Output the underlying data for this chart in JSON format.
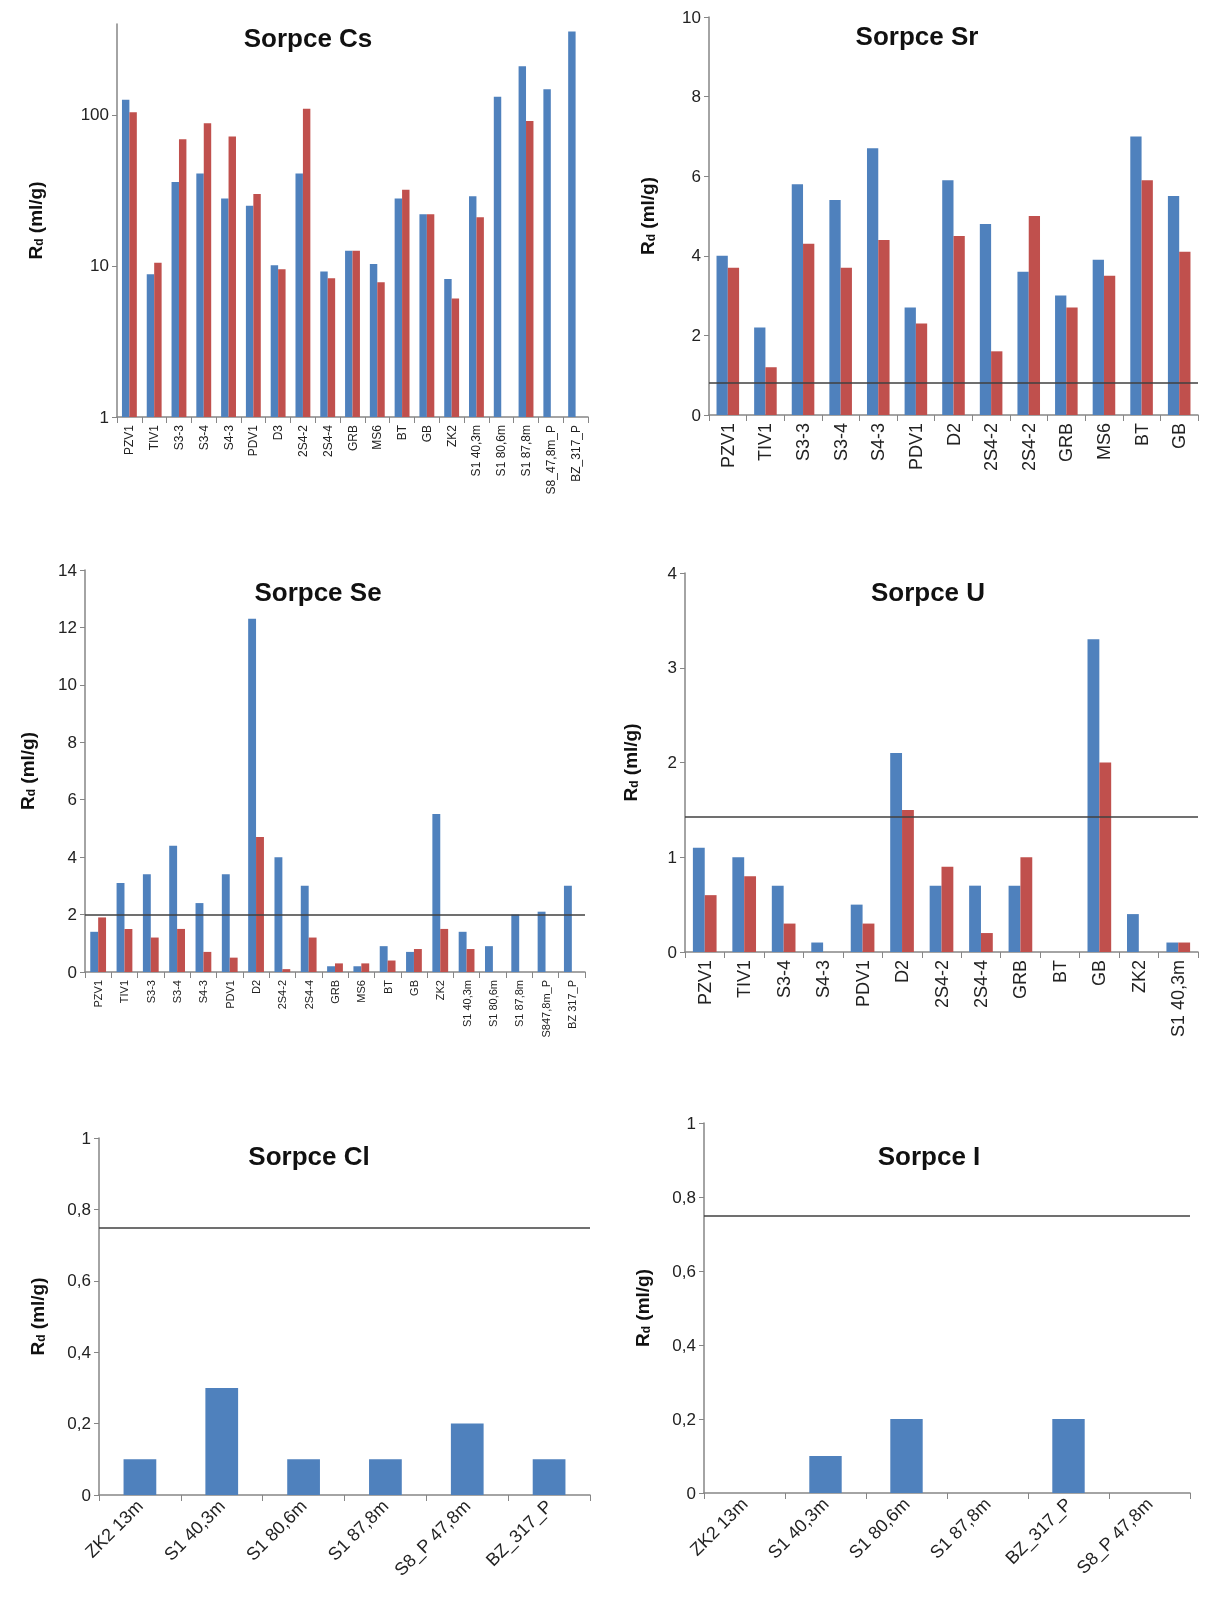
{
  "chart_data": [
    {
      "type": "bar",
      "title": "Sorpce Cs",
      "ylabel": "R$_{d}$ (ml/g)",
      "log": true,
      "categories": [
        "PZV1",
        "TIV1",
        "S3-3",
        "S3-4",
        "S4-3",
        "PDV1",
        "D3",
        "2S4-2",
        "2S4-4",
        "GRB",
        "MS6",
        "BT",
        "GB",
        "ZK2",
        "S1 40,3m",
        "S1 80,6m",
        "S1 87,8m",
        "S8_47,8m_P",
        "BZ_317_P"
      ],
      "series": [
        {
          "color": "#4f81bd",
          "values": [
            126,
            8.8,
            36,
            41,
            28,
            25,
            10.1,
            41,
            9.2,
            12.6,
            10.3,
            28,
            22,
            8.2,
            29,
            132,
            210,
            148,
            357
          ]
        },
        {
          "color": "#c0504d",
          "values": [
            104,
            10.5,
            69,
            88,
            72,
            30,
            9.5,
            110,
            8.3,
            12.6,
            7.8,
            32,
            22,
            6.1,
            21,
            null,
            91,
            null,
            null
          ]
        }
      ],
      "ylim": [
        1,
        400
      ],
      "yticks": [
        1,
        10,
        100
      ]
    },
    {
      "type": "bar",
      "title": "Sorpce Sr",
      "ylabel": "R$_{d}$ (ml/g)",
      "categories": [
        "PZV1",
        "TIV1",
        "S3-3",
        "S3-4",
        "S4-3",
        "PDV1",
        "D2",
        "2S4-2",
        "2S4-2",
        "GRB",
        "MS6",
        "BT",
        "GB"
      ],
      "series": [
        {
          "color": "#4f81bd",
          "values": [
            4.0,
            2.2,
            5.8,
            5.4,
            6.7,
            2.7,
            5.9,
            4.8,
            3.6,
            3.0,
            3.9,
            7.0,
            5.5
          ]
        },
        {
          "color": "#c0504d",
          "values": [
            3.7,
            1.2,
            4.3,
            3.7,
            4.4,
            2.3,
            4.5,
            1.6,
            5.0,
            2.7,
            3.5,
            5.9,
            4.1
          ]
        }
      ],
      "ylim": [
        0,
        10
      ],
      "yticks": [
        0,
        2,
        4,
        6,
        8,
        10
      ],
      "ref_lines": [
        {
          "axis": "y",
          "value": 0.8,
          "color": "#404040"
        }
      ]
    },
    {
      "type": "bar",
      "title": "Sorpce Se",
      "ylabel": "R$_{d}$ (ml/g)",
      "categories": [
        "PZV1",
        "TIV1",
        "S3-3",
        "S3-4",
        "S4-3",
        "PDV1",
        "D2",
        "2S4-2",
        "2S4-4",
        "GRB",
        "MS6",
        "BT",
        "GB",
        "ZK2",
        "S1 40,3m",
        "S1 80,6m",
        "S1 87,8m",
        "S847,8m_P",
        "BZ 317_P"
      ],
      "series": [
        {
          "color": "#4f81bd",
          "values": [
            1.4,
            3.1,
            3.4,
            4.4,
            2.4,
            3.4,
            12.3,
            4.0,
            3.0,
            0.2,
            0.2,
            0.9,
            0.7,
            5.5,
            1.4,
            0.9,
            2.0,
            2.1,
            3.0
          ]
        },
        {
          "color": "#c0504d",
          "values": [
            1.9,
            1.5,
            1.2,
            1.5,
            0.7,
            0.5,
            4.7,
            0.1,
            1.2,
            0.3,
            0.3,
            0.4,
            0.8,
            1.5,
            0.8,
            null,
            null,
            null,
            null
          ]
        }
      ],
      "ylim": [
        0,
        14
      ],
      "yticks": [
        0,
        2,
        4,
        6,
        8,
        10,
        12,
        14
      ],
      "ref_lines": [
        {
          "axis": "y",
          "value": 2,
          "color": "#404040"
        }
      ]
    },
    {
      "type": "bar",
      "title": "Sorpce U",
      "ylabel": "R$_{d}$ (ml/g)",
      "categories": [
        "PZV1",
        "TIV1",
        "S3-4",
        "S4-3",
        "PDV1",
        "D2",
        "2S4-2",
        "2S4-4",
        "GRB",
        "BT",
        "GB",
        "ZK2",
        "S1 40,3m"
      ],
      "series": [
        {
          "color": "#4f81bd",
          "values": [
            1.1,
            1.0,
            0.7,
            0.1,
            0.5,
            2.1,
            0.7,
            0.7,
            0.7,
            null,
            3.3,
            0.4,
            0.1
          ]
        },
        {
          "color": "#c0504d",
          "values": [
            0.6,
            0.8,
            0.3,
            null,
            0.3,
            1.5,
            0.9,
            0.2,
            1.0,
            null,
            2.0,
            null,
            0.1
          ]
        }
      ],
      "ylim": [
        0,
        4
      ],
      "yticks": [
        0,
        1,
        2,
        3,
        4
      ],
      "ref_lines": [
        {
          "axis": "y",
          "value": 1.43,
          "color": "#404040"
        }
      ]
    },
    {
      "type": "bar",
      "title": "Sorpce Cl",
      "ylabel": "R$_{d}$ (ml/g)",
      "categories": [
        "ZK2 13m",
        "S1 40,3m",
        "S1 80,6m",
        "S1 87,8m",
        "S8_P 47,8m",
        "BZ_317_P"
      ],
      "series": [
        {
          "color": "#4f81bd",
          "values": [
            0.1,
            0.3,
            0.1,
            0.1,
            0.2,
            0.1
          ]
        }
      ],
      "ylim": [
        0,
        1
      ],
      "yticks": [
        0,
        {
          "value": 0.2,
          "label": "0,2"
        },
        {
          "value": 0.4,
          "label": "0,4"
        },
        {
          "value": 0.6,
          "label": "0,6"
        },
        {
          "value": 0.8,
          "label": "0,8"
        },
        1
      ],
      "ref_lines": [
        {
          "axis": "y",
          "value": 0.75,
          "color": "#404040"
        }
      ]
    },
    {
      "type": "bar",
      "title": "Sorpce I",
      "ylabel": "R$_{d}$ (ml/g)",
      "categories": [
        "ZK2 13m",
        "S1 40,3m",
        "S1 80,6m",
        "S1 87,8m",
        "BZ_317_P",
        "S8_P 47,8m"
      ],
      "series": [
        {
          "color": "#4f81bd",
          "values": [
            null,
            0.1,
            0.2,
            null,
            0.2,
            null
          ]
        }
      ],
      "ylim": [
        0,
        1
      ],
      "yticks": [
        0,
        {
          "value": 0.2,
          "label": "0,2"
        },
        {
          "value": 0.4,
          "label": "0,4"
        },
        {
          "value": 0.6,
          "label": "0,6"
        },
        {
          "value": 0.8,
          "label": "0,8"
        },
        1
      ],
      "ref_lines": [
        {
          "axis": "y",
          "value": 0.75,
          "color": "#404040"
        }
      ]
    }
  ]
}
